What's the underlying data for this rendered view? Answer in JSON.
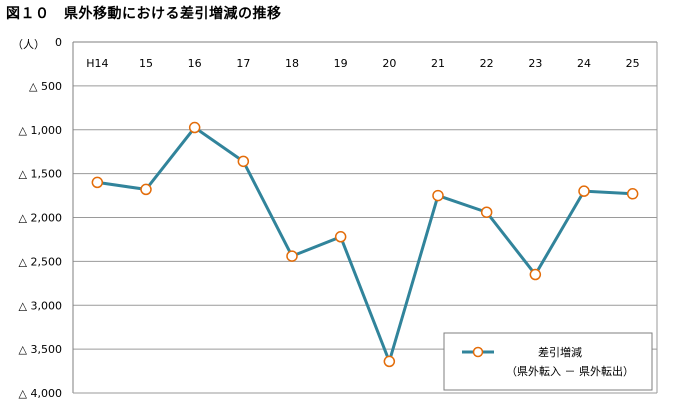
{
  "figure_title": "図１０　県外移動における差引増減の推移",
  "unit_label": "（人）",
  "chart_data": {
    "type": "line",
    "categories": [
      "H14",
      "15",
      "16",
      "17",
      "18",
      "19",
      "20",
      "21",
      "22",
      "23",
      "24",
      "25"
    ],
    "series": [
      {
        "name": "差引増減",
        "name_sub": "（県外転入 － 県外転出）",
        "values": [
          -1600,
          -1680,
          -975,
          -1360,
          -2440,
          -2220,
          -3640,
          -1750,
          -1940,
          -2650,
          -1700,
          -1730
        ],
        "line_color": "#31849b",
        "marker_stroke": "#e36c09",
        "marker_fill": "#ffffff"
      }
    ],
    "ylim": [
      -4000,
      0
    ],
    "yticks": [
      0,
      -500,
      -1000,
      -1500,
      -2000,
      -2500,
      -3000,
      -3500,
      -4000
    ],
    "ytick_labels": [
      "0",
      "△ 500",
      "△ 1,000",
      "△ 1,500",
      "△ 2,000",
      "△ 2,500",
      "△ 3,000",
      "△ 3,500",
      "△ 4,000"
    ],
    "grid": true,
    "legend_position": "bottom-right",
    "category_axis_position": "top"
  }
}
